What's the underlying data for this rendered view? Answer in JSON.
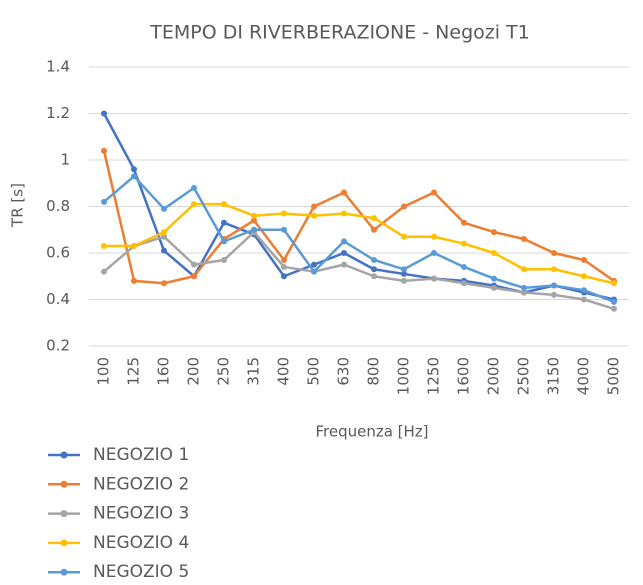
{
  "chart_data": {
    "type": "line",
    "title": "TEMPO DI RIVERBERAZIONE - Negozi T1",
    "x_label": "Frequenza [Hz]",
    "y_label": "TR [s]",
    "categories": [
      "100",
      "125",
      "160",
      "200",
      "250",
      "315",
      "400",
      "500",
      "630",
      "800",
      "1000",
      "1250",
      "1600",
      "2000",
      "2500",
      "3150",
      "4000",
      "5000"
    ],
    "series": [
      {
        "name": "NEGOZIO 1",
        "color": "#4472c4",
        "values": [
          1.2,
          0.96,
          0.61,
          0.5,
          0.73,
          0.68,
          0.5,
          0.55,
          0.6,
          0.53,
          0.51,
          0.49,
          0.48,
          0.46,
          0.43,
          0.46,
          0.43,
          0.4
        ]
      },
      {
        "name": "NEGOZIO 2",
        "color": "#ed7d31",
        "values": [
          1.04,
          0.48,
          0.47,
          0.5,
          0.66,
          0.74,
          0.57,
          0.8,
          0.86,
          0.7,
          0.8,
          0.86,
          0.73,
          0.69,
          0.66,
          0.6,
          0.57,
          0.48
        ]
      },
      {
        "name": "NEGOZIO 3",
        "color": "#a5a5a5",
        "values": [
          0.52,
          0.63,
          0.67,
          0.55,
          0.57,
          0.69,
          0.54,
          0.52,
          0.55,
          0.5,
          0.48,
          0.49,
          0.47,
          0.45,
          0.43,
          0.42,
          0.4,
          0.36
        ]
      },
      {
        "name": "NEGOZIO 4",
        "color": "#ffc000",
        "values": [
          0.63,
          0.63,
          0.69,
          0.81,
          0.81,
          0.76,
          0.77,
          0.76,
          0.77,
          0.75,
          0.67,
          0.67,
          0.64,
          0.6,
          0.53,
          0.53,
          0.5,
          0.47
        ]
      },
      {
        "name": "NEGOZIO 5",
        "color": "#5b9bd5",
        "values": [
          0.82,
          0.93,
          0.79,
          0.88,
          0.65,
          0.7,
          0.7,
          0.52,
          0.65,
          0.57,
          0.53,
          0.6,
          0.54,
          0.49,
          0.45,
          0.46,
          0.44,
          0.39
        ]
      }
    ],
    "ylim": [
      0.2,
      1.4
    ],
    "yticks": [
      0.2,
      0.4,
      0.6,
      0.8,
      1,
      1.2,
      1.4
    ],
    "grid": true,
    "legend": "bottom"
  }
}
